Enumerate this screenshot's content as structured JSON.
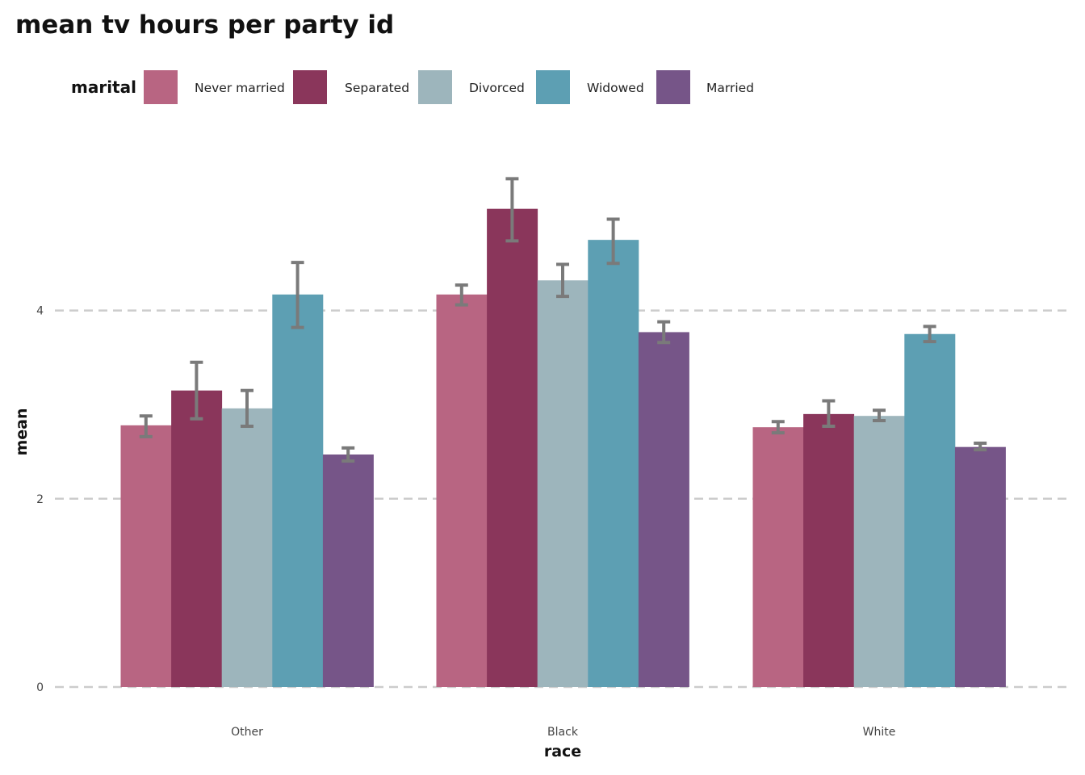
{
  "chart_data": {
    "type": "bar",
    "title": "mean tv hours per party id",
    "xlabel": "race",
    "ylabel": "mean",
    "categories": [
      "Other",
      "Black",
      "White"
    ],
    "ylim": [
      0,
      5.6
    ],
    "yticks": [
      0,
      2,
      4
    ],
    "grid": "horizontal dashed",
    "legend": {
      "title": "marital",
      "placement": "top-left"
    },
    "series": [
      {
        "name": "Never married",
        "color": "#b86582",
        "values": [
          2.78,
          4.17,
          2.76
        ],
        "err_low": [
          2.66,
          4.06,
          2.7
        ],
        "err_high": [
          2.88,
          4.27,
          2.82
        ]
      },
      {
        "name": "Separated",
        "color": "#8a365b",
        "values": [
          3.15,
          5.08,
          2.9
        ],
        "err_low": [
          2.85,
          4.74,
          2.77
        ],
        "err_high": [
          3.45,
          5.4,
          3.04
        ]
      },
      {
        "name": "Divorced",
        "color": "#9db5bc",
        "values": [
          2.96,
          4.32,
          2.88
        ],
        "err_low": [
          2.77,
          4.15,
          2.83
        ],
        "err_high": [
          3.15,
          4.49,
          2.94
        ]
      },
      {
        "name": "Widowed",
        "color": "#5d9fb3",
        "values": [
          4.17,
          4.75,
          3.75
        ],
        "err_low": [
          3.82,
          4.5,
          3.67
        ],
        "err_high": [
          4.51,
          4.97,
          3.83
        ]
      },
      {
        "name": "Married",
        "color": "#765588",
        "values": [
          2.47,
          3.77,
          2.55
        ],
        "err_low": [
          2.4,
          3.66,
          2.52
        ],
        "err_high": [
          2.54,
          3.88,
          2.59
        ]
      }
    ]
  }
}
